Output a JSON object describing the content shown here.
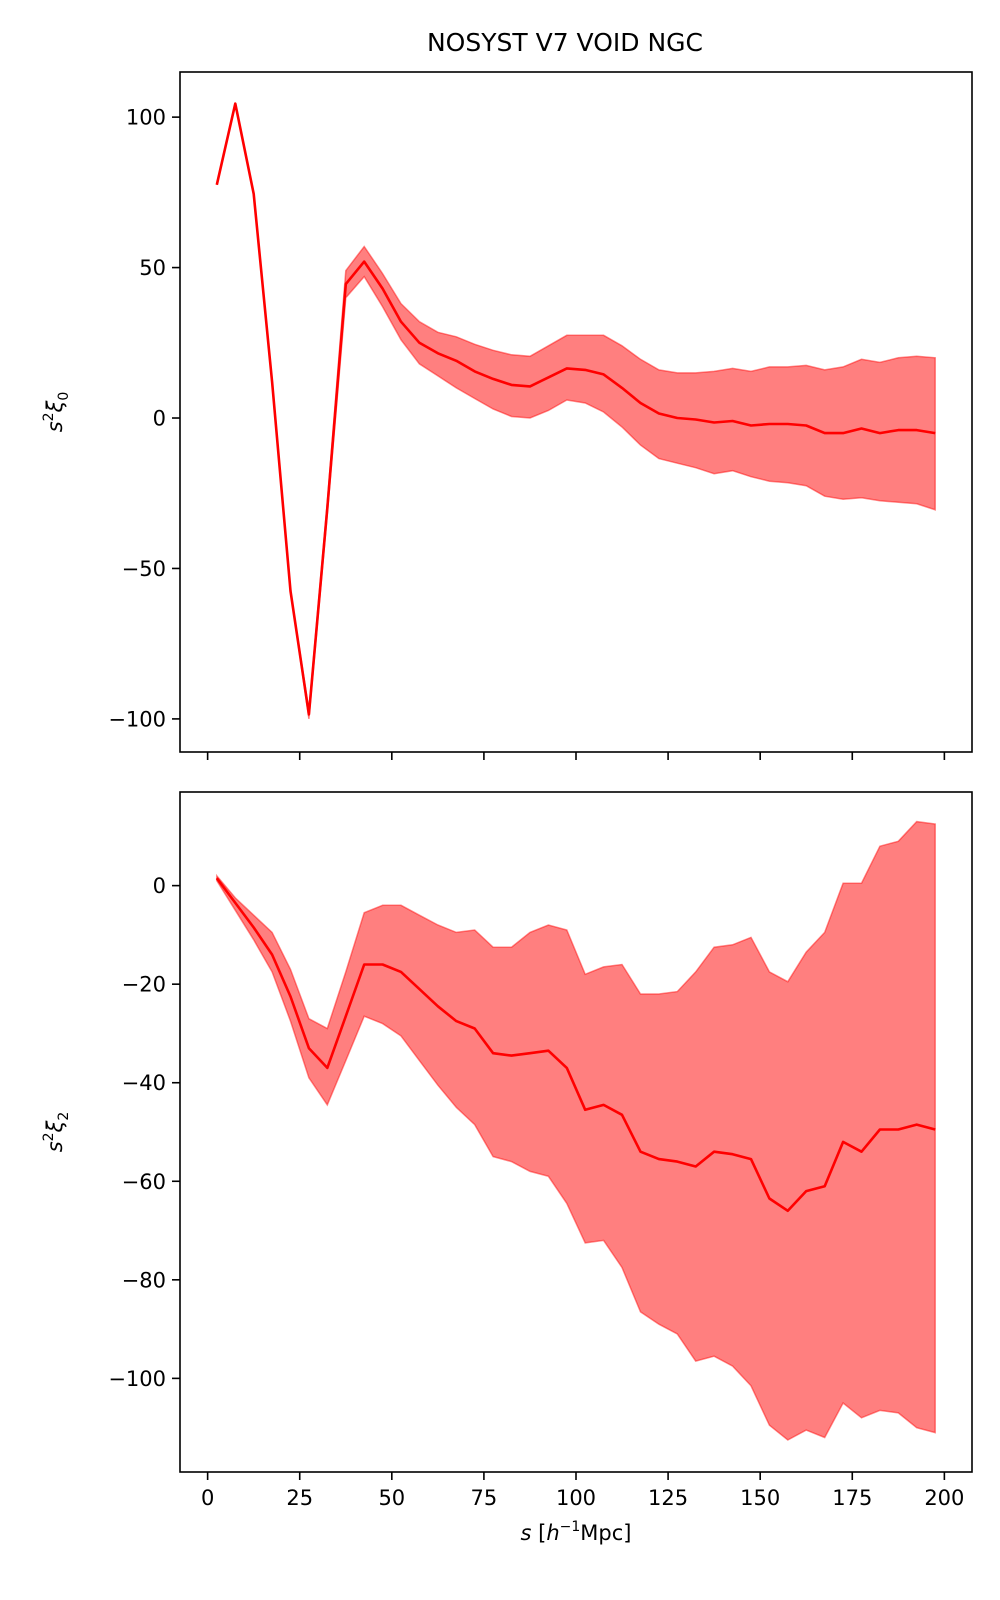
{
  "title": "NOSYST V7 VOID NGC",
  "colors": {
    "line": "#ff0000",
    "band": "#ff0000"
  },
  "chart_data": [
    {
      "type": "line",
      "title": "NOSYST V7 VOID NGC",
      "xlabel": "",
      "ylabel_base": "s",
      "ylabel_sup": "2",
      "ylabel_greek": "ξ",
      "ylabel_sub": "0",
      "xlim": [
        -7.5,
        207.5
      ],
      "ylim": [
        -111,
        115
      ],
      "xticks": [
        0,
        25,
        50,
        75,
        100,
        125,
        150,
        175,
        200
      ],
      "yticks": [
        -100,
        -50,
        0,
        50,
        100
      ],
      "ytick_labels": [
        "−100",
        "−50",
        "0",
        "50",
        "100"
      ],
      "show_xtick_labels": false,
      "x": [
        2.5,
        7.5,
        12.5,
        17.5,
        22.5,
        27.5,
        32.5,
        37.5,
        42.5,
        47.5,
        52.5,
        57.5,
        62.5,
        67.5,
        72.5,
        77.5,
        82.5,
        87.5,
        92.5,
        97.5,
        102.5,
        107.5,
        112.5,
        117.5,
        122.5,
        127.5,
        132.5,
        137.5,
        142.5,
        147.5,
        152.5,
        157.5,
        162.5,
        167.5,
        172.5,
        177.5,
        182.5,
        187.5,
        192.5,
        197.5
      ],
      "series": [
        {
          "values": [
            77.5,
            104.5,
            74.5,
            12,
            -57.5,
            -98.5,
            -30,
            44.5,
            52,
            43,
            32,
            25,
            21.5,
            19,
            15.5,
            13,
            11,
            10.5,
            13.5,
            16.5,
            16,
            14.5,
            10,
            5,
            1.5,
            0,
            -0.5,
            -1.5,
            -1,
            -2.5,
            -2,
            -2,
            -2.5,
            -5,
            -5,
            -3.5,
            -5,
            -4,
            -4,
            -5
          ],
          "upper": [
            77.5,
            104.5,
            74.5,
            12,
            -57.5,
            -97,
            -28,
            49,
            57,
            48,
            38,
            32,
            28.5,
            27,
            24.5,
            22.5,
            21,
            20.5,
            24,
            27.5,
            27.5,
            27.5,
            24,
            19.5,
            16,
            15,
            15,
            15.5,
            16.5,
            15.5,
            17,
            17,
            17.5,
            16,
            17,
            19.5,
            18.5,
            20,
            20.5,
            20
          ],
          "lower": [
            77.5,
            104.5,
            74.5,
            12,
            -57.5,
            -100,
            -32,
            40,
            47,
            37,
            26,
            18,
            14,
            10,
            6.5,
            3,
            0.5,
            0,
            2.5,
            6,
            5,
            2,
            -3,
            -9,
            -13.5,
            -15,
            -16.5,
            -18.5,
            -17.5,
            -19.5,
            -21,
            -21.5,
            -22.5,
            -26,
            -27,
            -26.5,
            -27.5,
            -28,
            -28.5,
            -30.5
          ]
        }
      ]
    },
    {
      "type": "line",
      "title": "",
      "xlabel_base": "s",
      "xlabel_open": " [",
      "xlabel_h": "h",
      "xlabel_sup": "−1",
      "xlabel_unit": "Mpc]",
      "ylabel_base": "s",
      "ylabel_sup": "2",
      "ylabel_greek": "ξ",
      "ylabel_sub": "2",
      "xlim": [
        -7.5,
        207.5
      ],
      "ylim": [
        -119,
        19
      ],
      "xticks": [
        0,
        25,
        50,
        75,
        100,
        125,
        150,
        175,
        200
      ],
      "xtick_labels": [
        "0",
        "25",
        "50",
        "75",
        "100",
        "125",
        "150",
        "175",
        "200"
      ],
      "yticks": [
        -100,
        -80,
        -60,
        -40,
        -20,
        0
      ],
      "ytick_labels": [
        "−100",
        "−80",
        "−60",
        "−40",
        "−20",
        "0"
      ],
      "show_xtick_labels": true,
      "x": [
        2.5,
        7.5,
        12.5,
        17.5,
        22.5,
        27.5,
        32.5,
        37.5,
        42.5,
        47.5,
        52.5,
        57.5,
        62.5,
        67.5,
        72.5,
        77.5,
        82.5,
        87.5,
        92.5,
        97.5,
        102.5,
        107.5,
        112.5,
        117.5,
        122.5,
        127.5,
        132.5,
        137.5,
        142.5,
        147.5,
        152.5,
        157.5,
        162.5,
        167.5,
        172.5,
        177.5,
        182.5,
        187.5,
        192.5,
        197.5
      ],
      "series": [
        {
          "values": [
            1.5,
            -3.5,
            -8.5,
            -14,
            -22.5,
            -33,
            -37,
            -26.5,
            -16,
            -16,
            -17.5,
            -21,
            -24.5,
            -27.5,
            -29,
            -34,
            -34.5,
            -34,
            -33.5,
            -37,
            -45.5,
            -44.5,
            -46.5,
            -54,
            -55.5,
            -56,
            -57,
            -54,
            -54.5,
            -55.5,
            -63.5,
            -66,
            -62,
            -61,
            -52,
            -54,
            -49.5,
            -49.5,
            -48.5,
            -49.5
          ],
          "upper": [
            2,
            -2.5,
            -6,
            -9.5,
            -17,
            -27,
            -29,
            -17.5,
            -5.5,
            -4,
            -4,
            -6,
            -8,
            -9.5,
            -9,
            -12.5,
            -12.5,
            -9.5,
            -8,
            -9,
            -18,
            -16.5,
            -16,
            -22,
            -22,
            -21.5,
            -17.5,
            -12.5,
            -12,
            -10.5,
            -17.5,
            -19.5,
            -13.5,
            -9.5,
            0.5,
            0.5,
            8,
            9,
            13,
            12.5
          ],
          "lower": [
            1,
            -5,
            -11,
            -17.5,
            -27.5,
            -39,
            -44.5,
            -35.5,
            -26.5,
            -28,
            -30.5,
            -35.5,
            -40.5,
            -45,
            -48.5,
            -55,
            -56,
            -58,
            -59,
            -64.5,
            -72.5,
            -72,
            -77.5,
            -86.5,
            -89,
            -91,
            -96.5,
            -95.5,
            -97.5,
            -101.5,
            -109.5,
            -112.5,
            -110.5,
            -112,
            -105,
            -108,
            -106.5,
            -107,
            -110,
            -111
          ]
        }
      ]
    }
  ]
}
